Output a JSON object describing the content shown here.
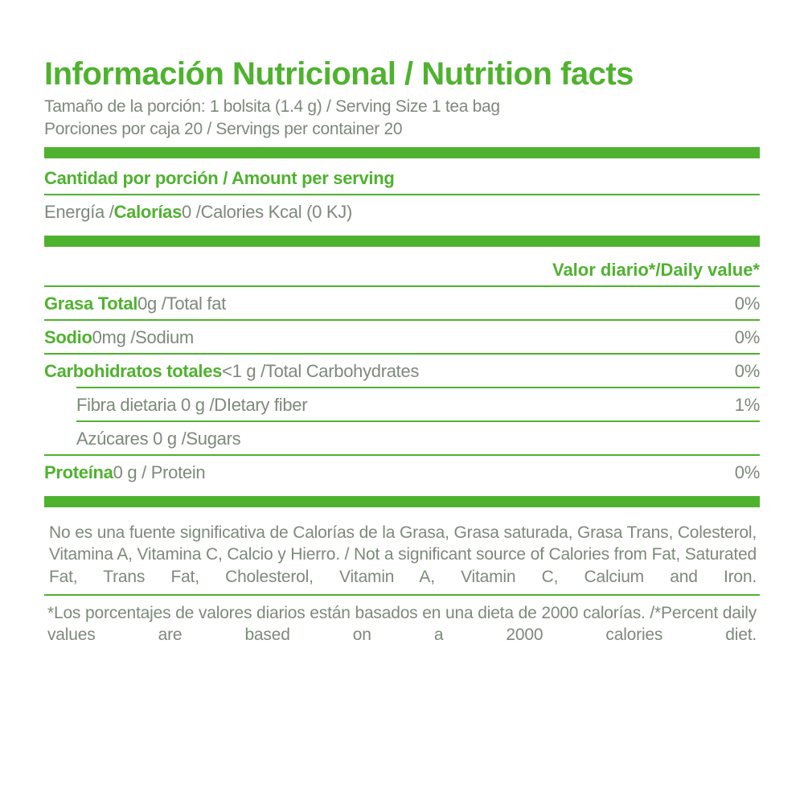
{
  "colors": {
    "green": "#4fb22f",
    "text_gray": "#7c8a7a",
    "rule": "#4fb22f",
    "bg": "#ffffff"
  },
  "header": {
    "title": "Información Nutricional / Nutrition facts",
    "serving_size": "Tamaño de la porción: 1 bolsita (1.4 g) / Serving Size 1 tea bag",
    "servings_per": "Porciones por caja 20 / Servings per container 20"
  },
  "amount_header": "Cantidad por  porción / Amount per serving",
  "energy": {
    "label_es": "Energía / ",
    "label_bold": "Calorías ",
    "rest": "0 /Calories Kcal (0 KJ)"
  },
  "dv_header": "Valor diario*/Daily value*",
  "rows": [
    {
      "bold": "Grasa Total ",
      "rest": "0g /Total fat",
      "dv": "0%",
      "indent": false,
      "short_rule": false
    },
    {
      "bold": "Sodio ",
      "rest": "0mg /Sodium",
      "dv": "0%",
      "indent": false,
      "short_rule": false
    },
    {
      "bold": "Carbohidratos totales  ",
      "rest": "<1 g /Total Carbohydrates",
      "dv": "0%",
      "indent": false,
      "short_rule": false
    },
    {
      "bold": "",
      "rest": "Fibra dietaria 0 g /DIetary fiber",
      "dv": "1%",
      "indent": true,
      "short_rule": true
    },
    {
      "bold": "",
      "rest": "Azúcares 0 g /Sugars",
      "dv": "",
      "indent": true,
      "short_rule": true
    },
    {
      "bold": "Proteína  ",
      "rest": "0 g / Protein",
      "dv": "0%",
      "indent": false,
      "short_rule": false
    }
  ],
  "footnote1": "No es una fuente significativa de Calorías de la Grasa, Grasa saturada, Grasa Trans, Colesterol, Vitamina A, Vitamina C, Calcio y Hierro. / Not a significant source of Calories from  Fat, Saturated Fat, Trans Fat, Cholesterol, Vitamin A, Vitamin C, Calcium and Iron.",
  "footnote2": "*Los porcentajes de valores diarios están basados en una dieta  de 2000 calorías. /*Percent daily values are based on a 2000 calories diet."
}
